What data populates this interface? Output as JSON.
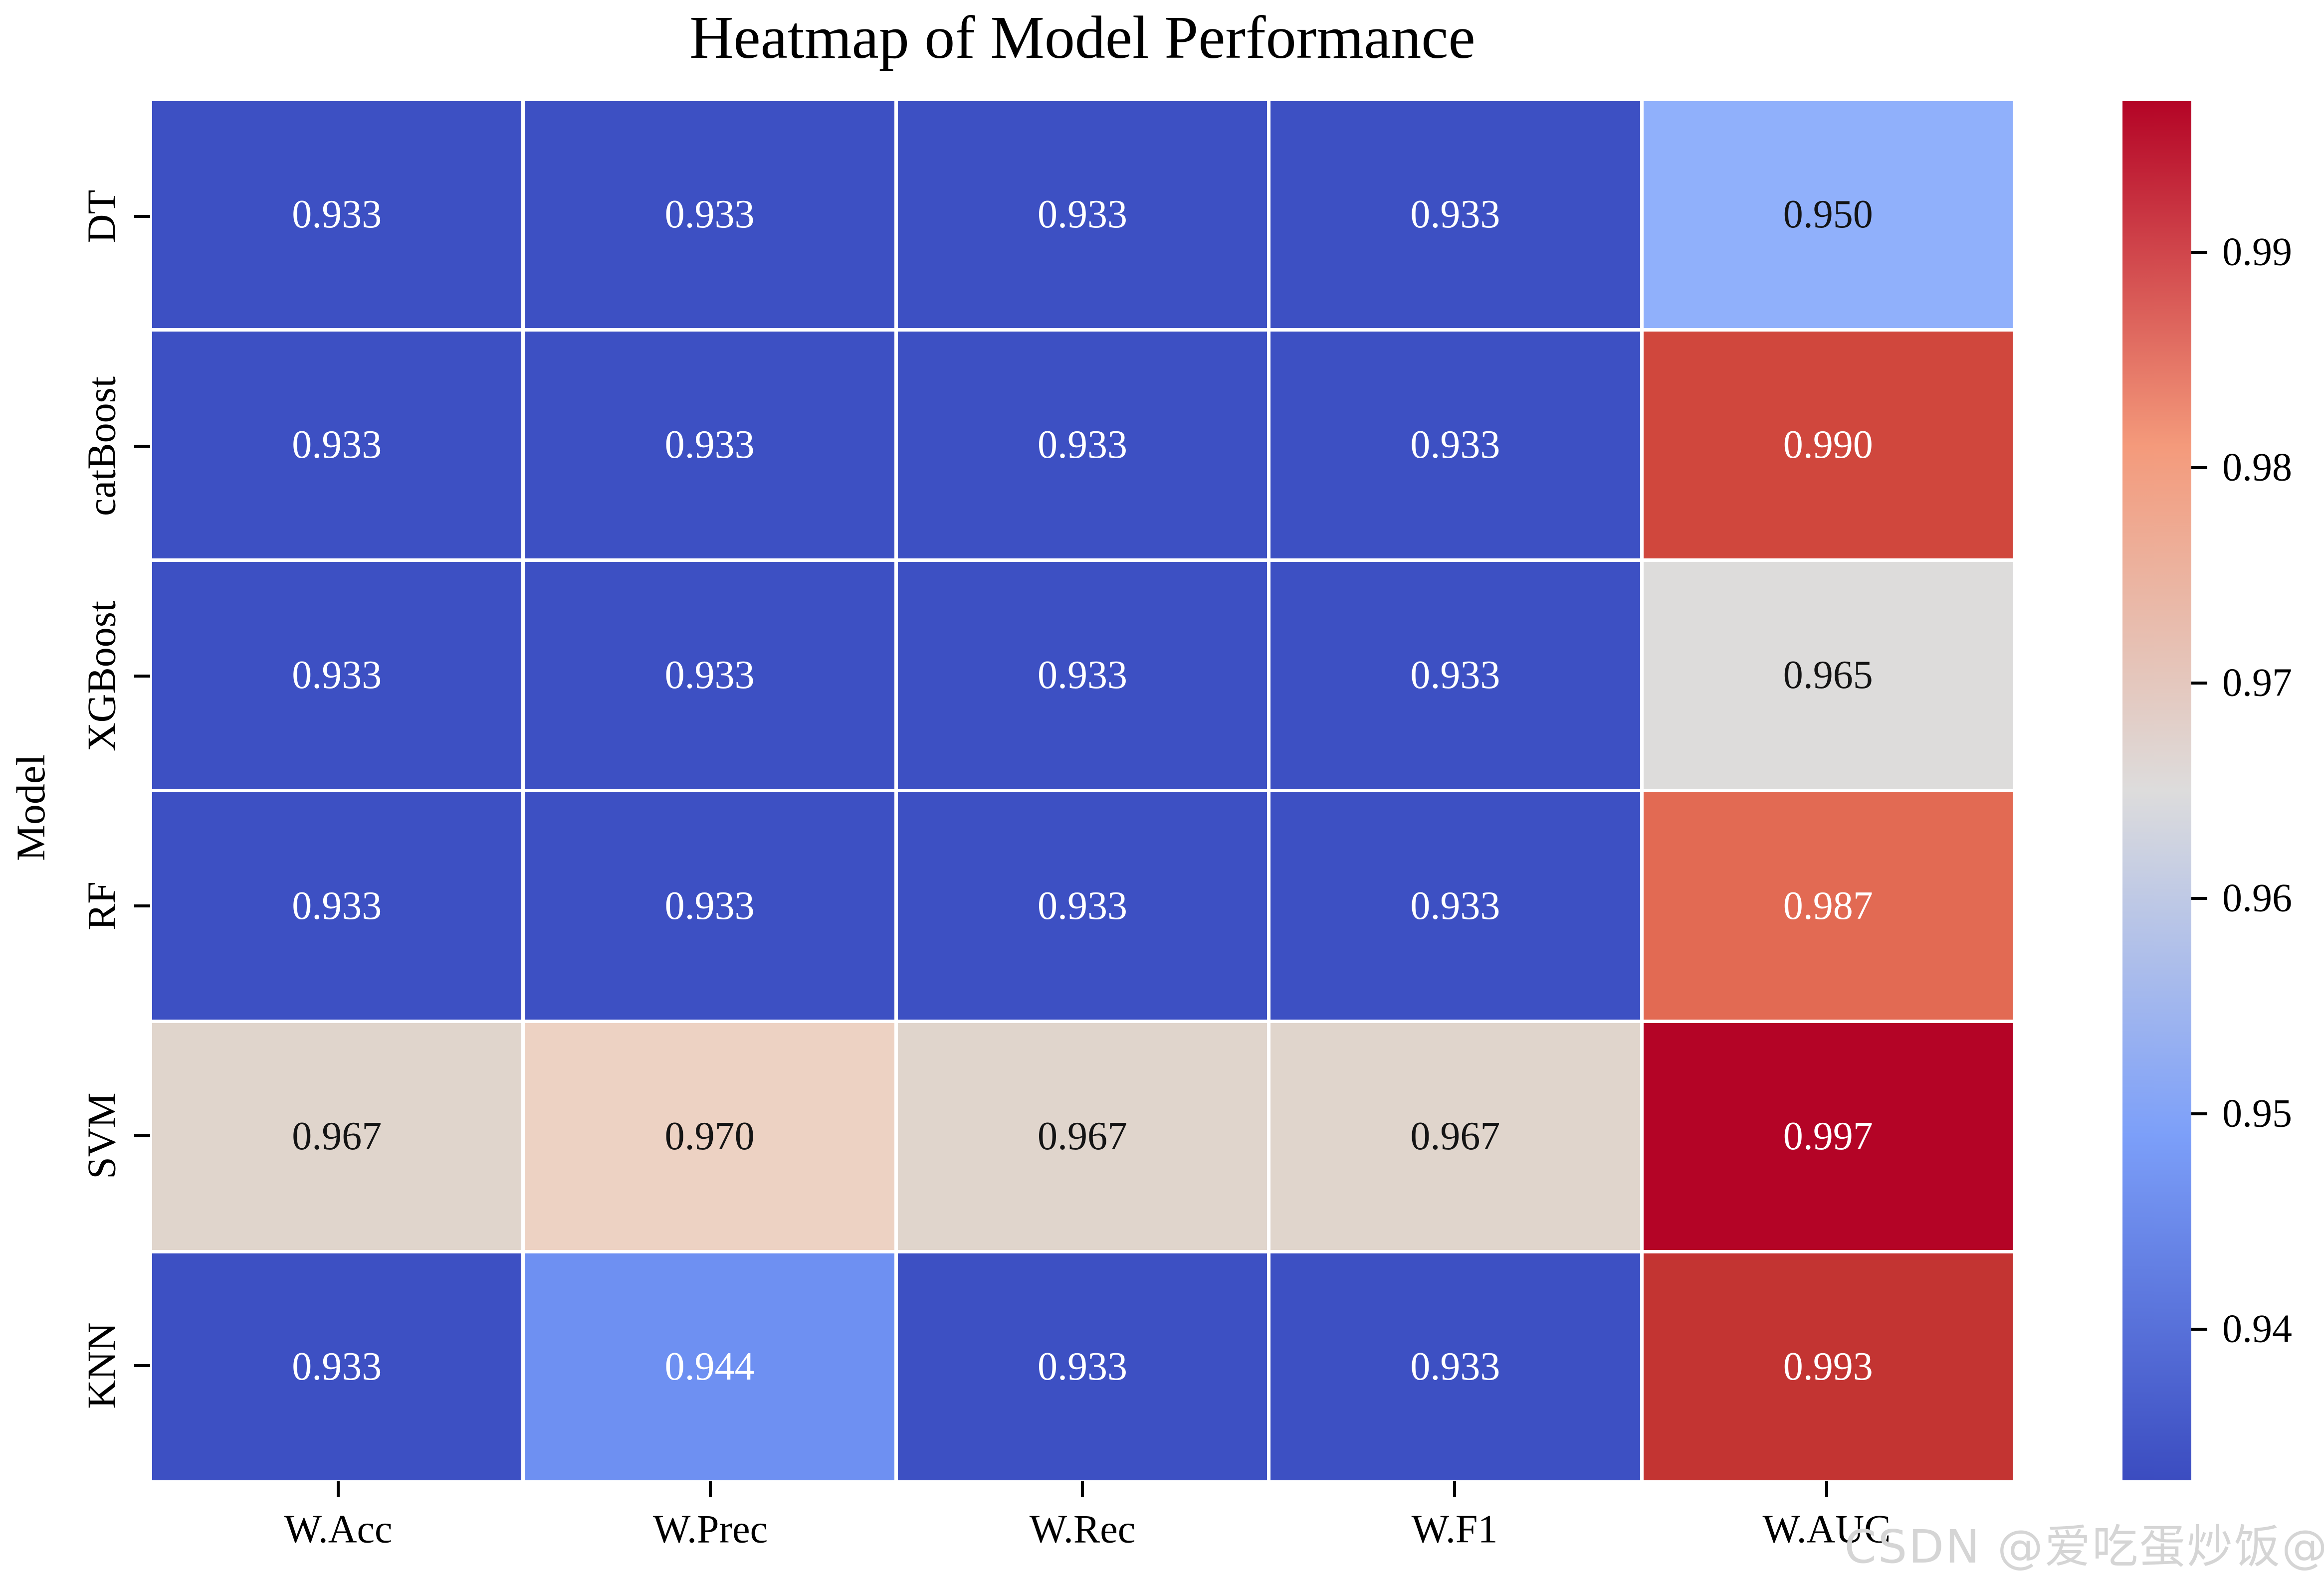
{
  "title": "Heatmap of Model Performance",
  "watermark": "CSDN @爱吃蛋炒饭@",
  "colors": {
    "background": "#ffffff",
    "gridline": "#ffffff",
    "tick": "#000000",
    "watermark": "#d5d5d5",
    "cell_text_light": "#ffffff",
    "cell_text_dark": "#141414"
  },
  "chart_data": {
    "type": "heatmap",
    "title": "Heatmap of Model Performance",
    "xlabel": "",
    "ylabel": "Model",
    "rows": [
      "DT",
      "catBoost",
      "XGBoost",
      "RF",
      "SVM",
      "KNN"
    ],
    "columns": [
      "W.Acc",
      "W.Prec",
      "W.Rec",
      "W.F1",
      "W.AUC"
    ],
    "values": [
      [
        0.933,
        0.933,
        0.933,
        0.933,
        0.95
      ],
      [
        0.933,
        0.933,
        0.933,
        0.933,
        0.99
      ],
      [
        0.933,
        0.933,
        0.933,
        0.933,
        0.965
      ],
      [
        0.933,
        0.933,
        0.933,
        0.933,
        0.987
      ],
      [
        0.967,
        0.97,
        0.967,
        0.967,
        0.997
      ],
      [
        0.933,
        0.944,
        0.933,
        0.933,
        0.993
      ]
    ],
    "cell_labels": [
      [
        "0.933",
        "0.933",
        "0.933",
        "0.933",
        "0.950"
      ],
      [
        "0.933",
        "0.933",
        "0.933",
        "0.933",
        "0.990"
      ],
      [
        "0.933",
        "0.933",
        "0.933",
        "0.933",
        "0.965"
      ],
      [
        "0.933",
        "0.933",
        "0.933",
        "0.933",
        "0.987"
      ],
      [
        "0.967",
        "0.970",
        "0.967",
        "0.967",
        "0.997"
      ],
      [
        "0.933",
        "0.944",
        "0.933",
        "0.933",
        "0.993"
      ]
    ],
    "cell_colors": [
      [
        "#3d50c3",
        "#3d50c3",
        "#3d50c3",
        "#3d50c3",
        "#90b0fb"
      ],
      [
        "#3d50c3",
        "#3d50c3",
        "#3d50c3",
        "#3d50c3",
        "#d0473d"
      ],
      [
        "#3d50c3",
        "#3d50c3",
        "#3d50c3",
        "#3d50c3",
        "#dddcdb"
      ],
      [
        "#3d50c3",
        "#3d50c3",
        "#3d50c3",
        "#3d50c3",
        "#e26a53"
      ],
      [
        "#e0d5cc",
        "#edd2c3",
        "#e0d5cc",
        "#e0d5cc",
        "#b40426"
      ],
      [
        "#3d50c3",
        "#6e90f2",
        "#3d50c3",
        "#3d50c3",
        "#c33432"
      ]
    ],
    "cell_text_colors": [
      [
        "#ffffff",
        "#ffffff",
        "#ffffff",
        "#ffffff",
        "#141414"
      ],
      [
        "#ffffff",
        "#ffffff",
        "#ffffff",
        "#ffffff",
        "#ffffff"
      ],
      [
        "#ffffff",
        "#ffffff",
        "#ffffff",
        "#ffffff",
        "#141414"
      ],
      [
        "#ffffff",
        "#ffffff",
        "#ffffff",
        "#ffffff",
        "#ffffff"
      ],
      [
        "#141414",
        "#141414",
        "#141414",
        "#141414",
        "#ffffff"
      ],
      [
        "#ffffff",
        "#ffffff",
        "#ffffff",
        "#ffffff",
        "#ffffff"
      ]
    ],
    "colormap": "coolwarm",
    "vmin": 0.933,
    "vmax": 0.997,
    "grid": true,
    "legend_position": "right-colorbar",
    "colorbar": {
      "tick_labels": [
        "0.99",
        "0.98",
        "0.97",
        "0.96",
        "0.95",
        "0.94"
      ],
      "tick_values": [
        0.99,
        0.98,
        0.97,
        0.96,
        0.95,
        0.94
      ],
      "gradient_top_to_bottom": [
        "#b40426",
        "#f49a7b",
        "#dddcdc",
        "#7c9ff9",
        "#3b4cc0"
      ]
    }
  }
}
